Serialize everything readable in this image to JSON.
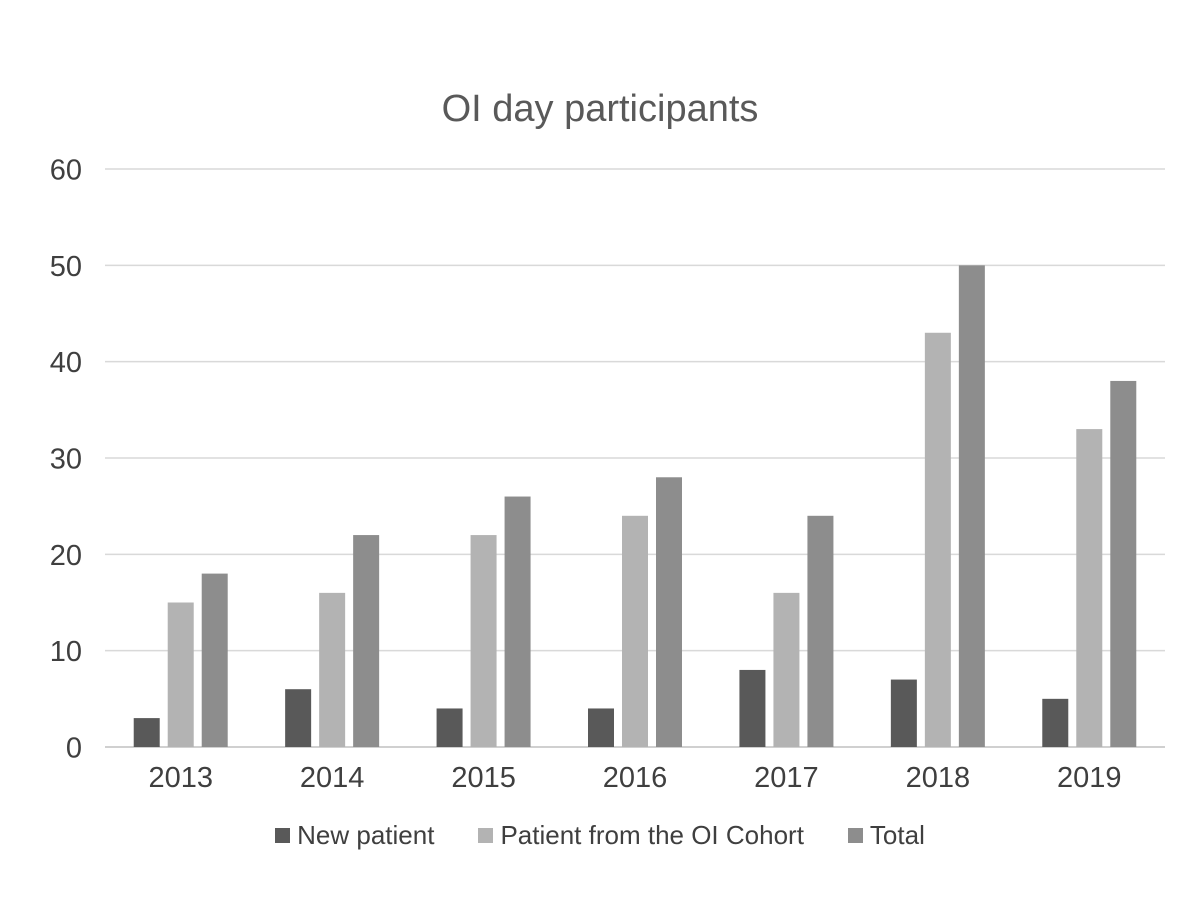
{
  "chart_data": {
    "type": "bar",
    "title": "OI day participants",
    "categories": [
      "2013",
      "2014",
      "2015",
      "2016",
      "2017",
      "2018",
      "2019"
    ],
    "series": [
      {
        "name": "New patient",
        "color": "#595959",
        "values": [
          3,
          6,
          4,
          4,
          8,
          7,
          5
        ]
      },
      {
        "name": "Patient from the OI Cohort",
        "color": "#b3b3b3",
        "values": [
          15,
          16,
          22,
          24,
          16,
          43,
          33
        ]
      },
      {
        "name": "Total",
        "color": "#8d8d8d",
        "values": [
          18,
          22,
          26,
          28,
          24,
          50,
          38
        ]
      }
    ],
    "xlabel": "",
    "ylabel": "",
    "ylim": [
      0,
      60
    ],
    "ytick_step": 10,
    "ytick_labels": [
      "0",
      "10",
      "20",
      "30",
      "40",
      "50",
      "60"
    ],
    "grid": true,
    "legend_position": "bottom"
  },
  "colors": {
    "title_text": "#595959",
    "tick_text": "#3f3f3f",
    "legend_text": "#3f3f3f",
    "gridline": "#d9d9d9",
    "axis_line": "#c0c0c0",
    "background": "#ffffff"
  }
}
